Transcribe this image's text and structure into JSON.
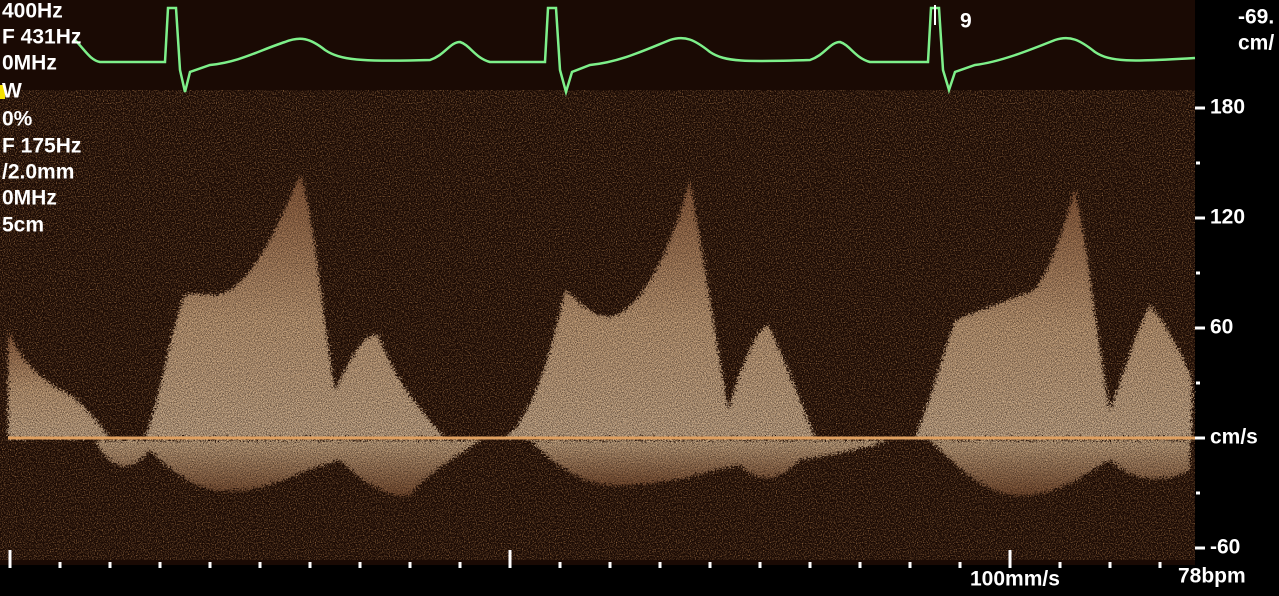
{
  "left_params": [
    "400Hz",
    "F 431Hz",
    "0MHz",
    "W",
    "0%",
    "F 175Hz",
    "/2.0mm",
    "0MHz",
    "5cm"
  ],
  "ecg_marker": "9",
  "top_right": [
    "-69.",
    "cm/"
  ],
  "velocity_scale": {
    "ticks": [
      180,
      120,
      60,
      {
        "value": 0,
        "label": "cm/s"
      },
      -60
    ]
  },
  "footer": {
    "sweep_speed": "100mm/s",
    "heart_rate": "78bpm"
  }
}
